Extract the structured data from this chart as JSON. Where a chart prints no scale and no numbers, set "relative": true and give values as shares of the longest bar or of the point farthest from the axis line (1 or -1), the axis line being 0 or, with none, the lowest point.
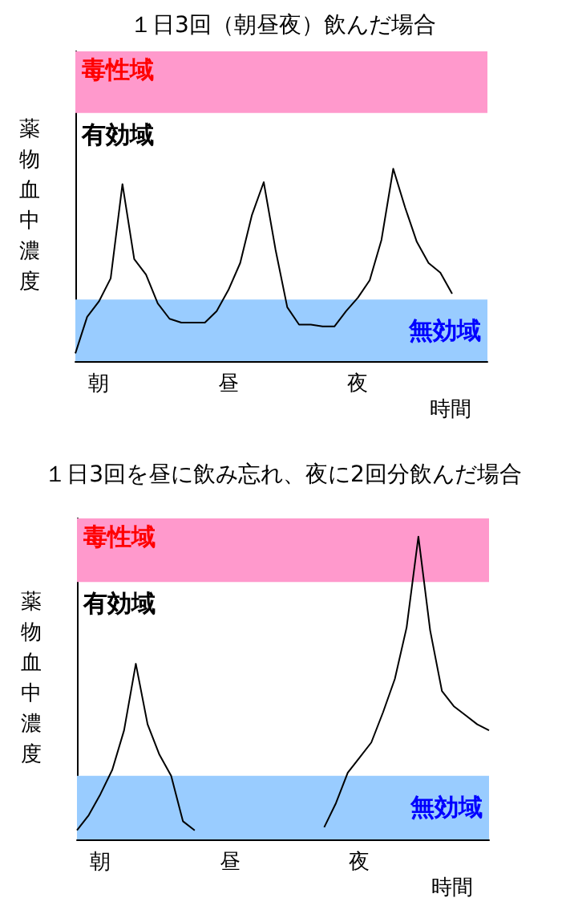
{
  "chart_data": [
    {
      "type": "line",
      "title": "１日3回（朝昼夜）飲んだ場合",
      "xlabel": "時間",
      "ylabel": "薬物血中濃度",
      "relative": true,
      "marker": "none",
      "grid": false,
      "categories": [
        null,
        null,
        "朝",
        null,
        null,
        null,
        null,
        null,
        null,
        null,
        null,
        null,
        null,
        "昼",
        null,
        null,
        null,
        null,
        null,
        null,
        null,
        null,
        null,
        null,
        "夜",
        null,
        null,
        null,
        null,
        null,
        null,
        null,
        null,
        null,
        null,
        null
      ],
      "series": [
        {
          "color": "#000000",
          "values": [
            0.04,
            0.23,
            0.31,
            0.43,
            0.92,
            0.53,
            0.45,
            0.3,
            0.22,
            0.2,
            0.2,
            0.2,
            0.26,
            0.37,
            0.51,
            0.76,
            0.93,
            0.58,
            0.28,
            0.19,
            0.19,
            0.18,
            0.18,
            0.26,
            0.33,
            0.42,
            0.63,
            1.0,
            0.8,
            0.62,
            0.51,
            0.46,
            0.35,
            null,
            null,
            null
          ]
        }
      ],
      "bands": [
        {
          "axis": "y",
          "from": 1.29,
          "to": 1.61,
          "label": "毒性域",
          "color": "#ff99cc"
        },
        {
          "axis": "y",
          "from": 0,
          "to": 0.32,
          "label": "無効域",
          "color": "#99ccff"
        }
      ],
      "annotations": [
        "有効域"
      ]
    },
    {
      "type": "line",
      "title": "１日3回を昼に飲み忘れ、夜に2回分飲んだ場合",
      "xlabel": "時間",
      "ylabel": "薬物血中濃度",
      "relative": true,
      "marker": "none",
      "grid": false,
      "categories": [
        null,
        null,
        "朝",
        null,
        null,
        null,
        null,
        null,
        null,
        null,
        null,
        null,
        null,
        "昼",
        null,
        null,
        null,
        null,
        null,
        null,
        null,
        null,
        null,
        null,
        "夜",
        null,
        null,
        null,
        null,
        null,
        null,
        null,
        null,
        null,
        null,
        null
      ],
      "series": [
        {
          "color": "#000000",
          "values": [
            0.03,
            0.08,
            0.15,
            0.23,
            0.36,
            0.58,
            0.38,
            0.28,
            0.21,
            0.06,
            0.03,
            null,
            null,
            null,
            null,
            null,
            null,
            null,
            null,
            null,
            null,
            0.04,
            0.12,
            0.22,
            0.27,
            0.32,
            0.42,
            0.53,
            0.7,
            1.0,
            0.69,
            0.49,
            0.44,
            0.41,
            0.38,
            0.36
          ]
        }
      ],
      "bands": [
        {
          "axis": "y",
          "from": 0.85,
          "to": 1.06,
          "label": "毒性域",
          "color": "#ff99cc"
        },
        {
          "axis": "y",
          "from": 0,
          "to": 0.21,
          "label": "無効域",
          "color": "#99ccff"
        }
      ],
      "annotations": [
        "有効域"
      ]
    }
  ]
}
